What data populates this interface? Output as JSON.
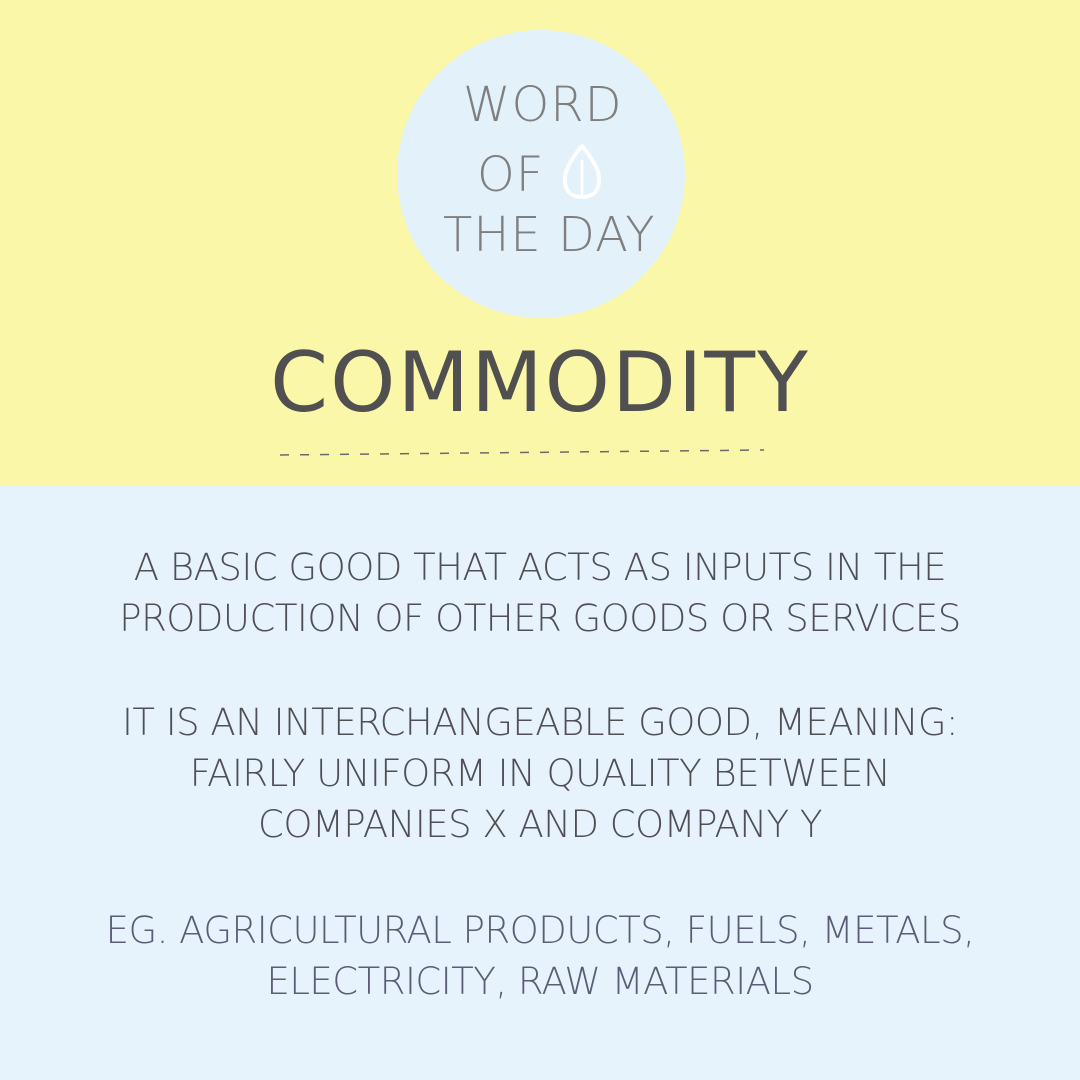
{
  "badge": {
    "line1": "WORD",
    "line2": "OF",
    "line3": "THE DAY"
  },
  "word": "COMMODITY",
  "definition": {
    "lines": [
      "A BASIC GOOD THAT ACTS AS INPUTS IN THE",
      "PRODUCTION OF OTHER GOODS OR SERVICES"
    ]
  },
  "explanation": {
    "lines": [
      "IT IS AN INTERCHANGEABLE GOOD, MEANING:",
      "FAIRLY UNIFORM IN QUALITY BETWEEN",
      "COMPANIES X AND COMPANY Y"
    ]
  },
  "examples": {
    "lines": [
      "EG. AGRICULTURAL PRODUCTS, FUELS, METALS,",
      "ELECTRICITY, RAW MATERIALS"
    ]
  },
  "colors": {
    "top_background": "#fbf7a9",
    "bottom_background": "#e6f3fc",
    "badge_circle": "#e2f1fa",
    "badge_text": "#7f7f7f",
    "title_text": "#505050",
    "body_text": "#4f4f55"
  },
  "icons": {
    "badge_icon": "leaf-icon"
  }
}
